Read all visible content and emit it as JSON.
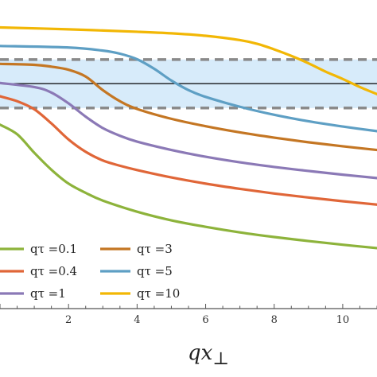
{
  "chart_data": {
    "type": "line",
    "xlabel_main": "qx",
    "xlabel_sub": "⊥",
    "ylabel": "",
    "xlim": [
      0,
      11
    ],
    "ylim": [
      0.0,
      1.0
    ],
    "xticks": [
      2,
      4,
      6,
      8,
      10
    ],
    "grid": false,
    "legend_position": "bottom-left",
    "band": {
      "y_low": 0.65,
      "y_high": 0.807,
      "center": 0.729,
      "color": "#d7ebfa",
      "border_color": "#8a8a8a"
    },
    "series": [
      {
        "name": "qτ =0.1",
        "color": "#8db33b",
        "points": [
          [
            0,
            0.596
          ],
          [
            0.5,
            0.565
          ],
          [
            1,
            0.505
          ],
          [
            1.5,
            0.45
          ],
          [
            2,
            0.405
          ],
          [
            2.5,
            0.375
          ],
          [
            3,
            0.35
          ],
          [
            4,
            0.314
          ],
          [
            5,
            0.286
          ],
          [
            6,
            0.265
          ],
          [
            7,
            0.247
          ],
          [
            8,
            0.232
          ],
          [
            9,
            0.219
          ],
          [
            10,
            0.207
          ],
          [
            11,
            0.196
          ]
        ]
      },
      {
        "name": "qτ =0.4",
        "color": "#e06638",
        "points": [
          [
            0,
            0.688
          ],
          [
            0.5,
            0.672
          ],
          [
            1,
            0.646
          ],
          [
            1.5,
            0.6
          ],
          [
            2,
            0.548
          ],
          [
            2.5,
            0.508
          ],
          [
            3,
            0.48
          ],
          [
            3.5,
            0.463
          ],
          [
            4,
            0.449
          ],
          [
            5,
            0.425
          ],
          [
            6,
            0.405
          ],
          [
            7,
            0.388
          ],
          [
            8,
            0.373
          ],
          [
            9,
            0.36
          ],
          [
            10,
            0.348
          ],
          [
            11,
            0.337
          ]
        ]
      },
      {
        "name": "qτ =1",
        "color": "#8b79b6",
        "points": [
          [
            0,
            0.731
          ],
          [
            1,
            0.718
          ],
          [
            1.5,
            0.7
          ],
          [
            2,
            0.665
          ],
          [
            2.5,
            0.622
          ],
          [
            3,
            0.585
          ],
          [
            3.5,
            0.56
          ],
          [
            4,
            0.541
          ],
          [
            5,
            0.514
          ],
          [
            6,
            0.492
          ],
          [
            7,
            0.474
          ],
          [
            8,
            0.459
          ],
          [
            9,
            0.446
          ],
          [
            10,
            0.434
          ],
          [
            11,
            0.423
          ]
        ]
      },
      {
        "name": "qτ =3",
        "color": "#c47623",
        "points": [
          [
            0,
            0.793
          ],
          [
            1,
            0.79
          ],
          [
            1.5,
            0.784
          ],
          [
            2,
            0.774
          ],
          [
            2.5,
            0.752
          ],
          [
            3,
            0.708
          ],
          [
            3.5,
            0.672
          ],
          [
            4,
            0.647
          ],
          [
            5,
            0.615
          ],
          [
            6,
            0.591
          ],
          [
            7,
            0.571
          ],
          [
            8,
            0.554
          ],
          [
            9,
            0.539
          ],
          [
            10,
            0.526
          ],
          [
            11,
            0.514
          ]
        ]
      },
      {
        "name": "qτ =5",
        "color": "#5e9fc4",
        "points": [
          [
            0,
            0.851
          ],
          [
            2,
            0.846
          ],
          [
            3,
            0.836
          ],
          [
            3.5,
            0.826
          ],
          [
            4,
            0.808
          ],
          [
            4.5,
            0.777
          ],
          [
            5,
            0.739
          ],
          [
            5.5,
            0.708
          ],
          [
            6,
            0.686
          ],
          [
            7,
            0.654
          ],
          [
            8,
            0.628
          ],
          [
            9,
            0.607
          ],
          [
            10,
            0.59
          ],
          [
            11,
            0.575
          ]
        ]
      },
      {
        "name": "qτ =10",
        "color": "#f2b705",
        "points": [
          [
            0,
            0.911
          ],
          [
            2,
            0.905
          ],
          [
            4,
            0.897
          ],
          [
            5,
            0.892
          ],
          [
            6,
            0.884
          ],
          [
            7,
            0.87
          ],
          [
            7.5,
            0.858
          ],
          [
            8,
            0.84
          ],
          [
            8.5,
            0.819
          ],
          [
            9,
            0.795
          ],
          [
            9.5,
            0.768
          ],
          [
            10,
            0.744
          ],
          [
            10.5,
            0.718
          ],
          [
            11,
            0.695
          ]
        ]
      }
    ]
  }
}
